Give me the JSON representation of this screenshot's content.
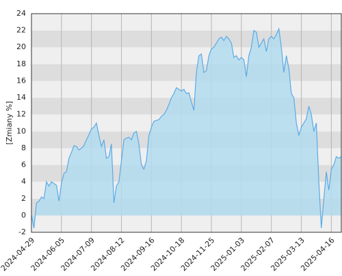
{
  "chart_data": {
    "type": "area",
    "y_label": "[Zmiany %]",
    "categories": [
      "2024-04-29",
      null,
      null,
      null,
      null,
      null,
      null,
      null,
      null,
      null,
      null,
      null,
      "2024-06-05",
      null,
      null,
      null,
      null,
      null,
      null,
      null,
      null,
      null,
      null,
      null,
      "2024-07-09",
      null,
      null,
      null,
      null,
      null,
      null,
      null,
      null,
      null,
      null,
      null,
      "2024-08-12",
      null,
      null,
      null,
      null,
      null,
      null,
      null,
      null,
      null,
      null,
      null,
      "2024-09-16",
      null,
      null,
      null,
      null,
      null,
      null,
      null,
      null,
      null,
      null,
      null,
      "2024-10-18",
      null,
      null,
      null,
      null,
      null,
      null,
      null,
      null,
      null,
      null,
      null,
      "2024-11-25",
      null,
      null,
      null,
      null,
      null,
      null,
      null,
      null,
      null,
      null,
      null,
      "2025-01-03",
      null,
      null,
      null,
      null,
      null,
      null,
      null,
      null,
      null,
      null,
      null,
      "2025-02-07",
      null,
      null,
      null,
      null,
      null,
      null,
      null,
      null,
      null,
      null,
      null,
      "2025-03-13",
      null,
      null,
      null,
      null,
      null,
      null,
      null,
      null,
      null,
      null,
      null,
      "2025-04-16",
      null,
      null,
      null,
      null
    ],
    "values": [
      0,
      -1.5,
      1.5,
      1.7,
      2.2,
      2.0,
      4.0,
      3.5,
      4.0,
      3.8,
      3.6,
      1.7,
      3.8,
      5.0,
      5.2,
      6.8,
      7.5,
      8.3,
      8.2,
      7.8,
      8.0,
      8.3,
      9.0,
      9.6,
      10.3,
      10.5,
      11.0,
      9.5,
      8.2,
      9.0,
      6.8,
      7.0,
      8.5,
      1.5,
      3.5,
      4.0,
      6.5,
      9.0,
      9.2,
      9.3,
      9.0,
      9.8,
      10.0,
      8.5,
      6.0,
      5.5,
      6.5,
      9.5,
      10.5,
      11.2,
      11.3,
      11.4,
      11.8,
      12.0,
      12.5,
      13.2,
      14.0,
      14.5,
      15.2,
      15.0,
      14.8,
      15.0,
      14.5,
      14.6,
      13.5,
      12.5,
      17.0,
      19.0,
      19.2,
      17.0,
      17.2,
      19.0,
      19.8,
      20.0,
      20.5,
      21.0,
      21.2,
      20.8,
      21.3,
      21.0,
      20.5,
      18.8,
      19.0,
      18.5,
      18.8,
      18.5,
      16.5,
      19.0,
      20.0,
      22.0,
      21.8,
      20.0,
      20.5,
      21.0,
      19.5,
      21.0,
      21.3,
      21.0,
      21.5,
      22.2,
      20.0,
      17.0,
      19.0,
      17.5,
      14.5,
      14.0,
      11.0,
      9.5,
      10.5,
      11.0,
      11.5,
      13.0,
      12.0,
      10.0,
      11.0,
      4.0,
      -1.5,
      2.0,
      5.2,
      3.0,
      5.5,
      6.0,
      7.0,
      6.8,
      7.0
    ],
    "color": "#5aaae6",
    "area_color": "#b3dcee",
    "band_colors": [
      "#efefef",
      "#dddddd"
    ],
    "ylim": [
      -2,
      24
    ],
    "yticks": [
      -2,
      0,
      2,
      4,
      6,
      8,
      10,
      12,
      14,
      16,
      18,
      20,
      22,
      24
    ],
    "grid": true
  }
}
